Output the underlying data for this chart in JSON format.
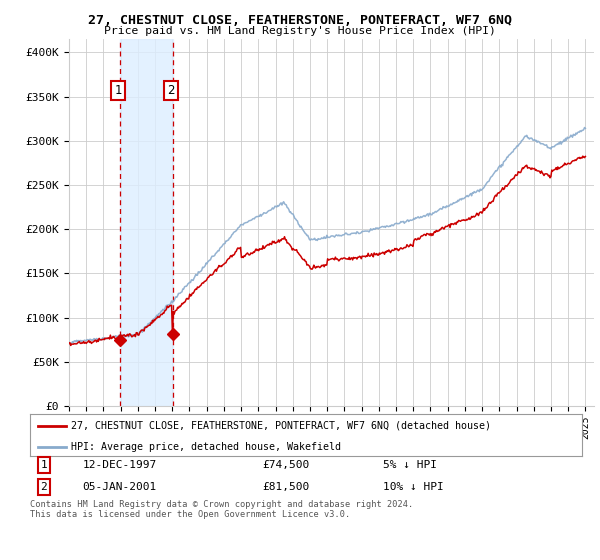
{
  "title": "27, CHESTNUT CLOSE, FEATHERSTONE, PONTEFRACT, WF7 6NQ",
  "subtitle": "Price paid vs. HM Land Registry's House Price Index (HPI)",
  "background_color": "#ffffff",
  "plot_bg_color": "#ffffff",
  "grid_color": "#cccccc",
  "ylabel_ticks": [
    "£0",
    "£50K",
    "£100K",
    "£150K",
    "£200K",
    "£250K",
    "£300K",
    "£350K",
    "£400K"
  ],
  "ytick_vals": [
    0,
    50000,
    100000,
    150000,
    200000,
    250000,
    300000,
    350000,
    400000
  ],
  "ylim": [
    0,
    415000
  ],
  "xlim_start": 1995.0,
  "xlim_end": 2025.5,
  "sale1": {
    "date_num": 1997.95,
    "price": 74500,
    "label": "1",
    "date_str": "12-DEC-1997",
    "note": "5% ↓ HPI"
  },
  "sale2": {
    "date_num": 2001.02,
    "price": 81500,
    "label": "2",
    "date_str": "05-JAN-2001",
    "note": "10% ↓ HPI"
  },
  "property_line_color": "#cc0000",
  "hpi_line_color": "#88aacc",
  "highlight_color": "#ddeeff",
  "dashed_color": "#cc0000",
  "legend1": "27, CHESTNUT CLOSE, FEATHERSTONE, PONTEFRACT, WF7 6NQ (detached house)",
  "legend2": "HPI: Average price, detached house, Wakefield",
  "footer": "Contains HM Land Registry data © Crown copyright and database right 2024.\nThis data is licensed under the Open Government Licence v3.0.",
  "xticks": [
    1995,
    1996,
    1997,
    1998,
    1999,
    2000,
    2001,
    2002,
    2003,
    2004,
    2005,
    2006,
    2007,
    2008,
    2009,
    2010,
    2011,
    2012,
    2013,
    2014,
    2015,
    2016,
    2017,
    2018,
    2019,
    2020,
    2021,
    2022,
    2023,
    2024,
    2025
  ]
}
